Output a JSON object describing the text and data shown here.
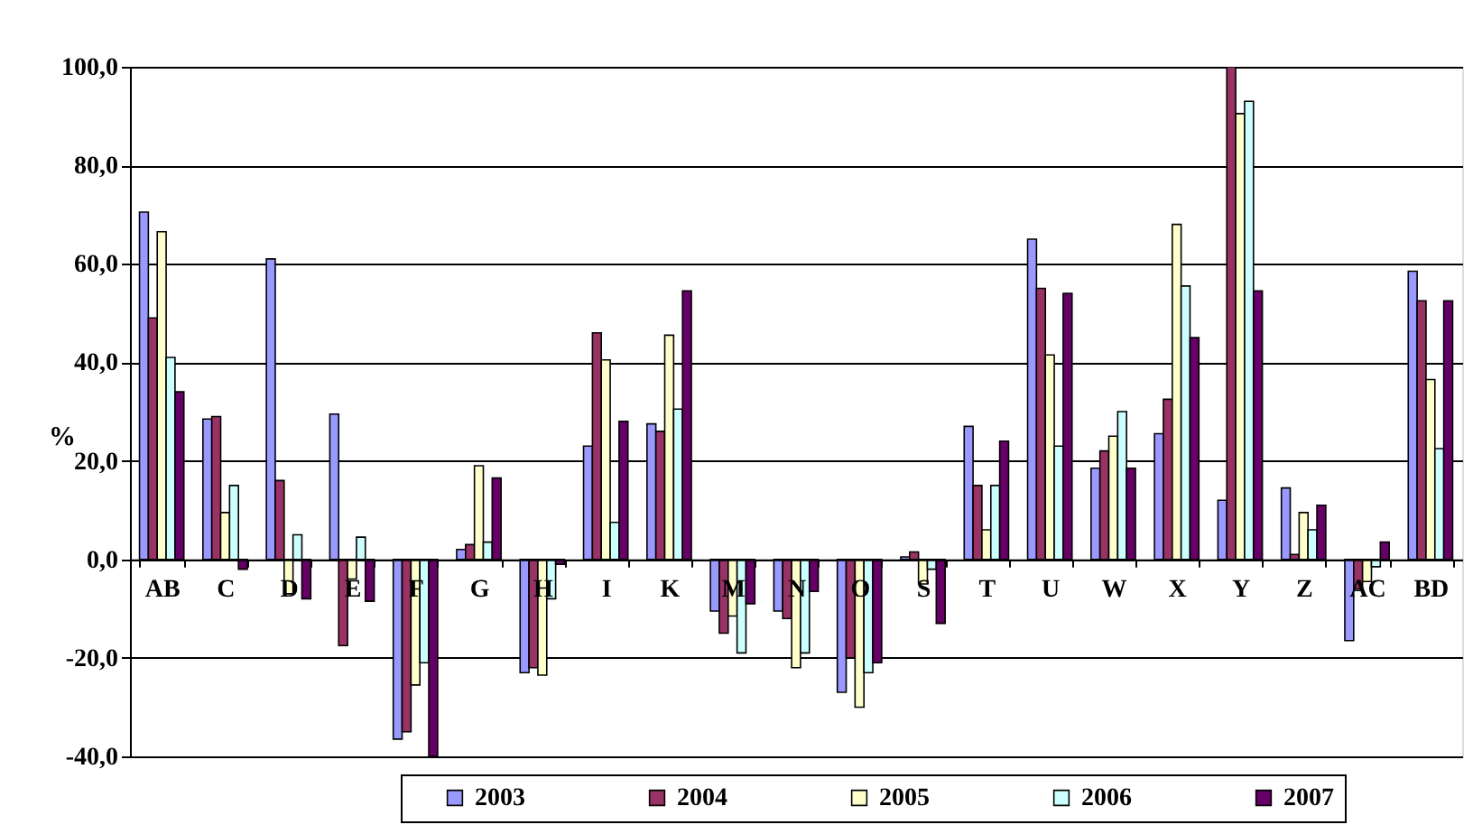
{
  "chart_data": {
    "type": "bar",
    "categories": [
      "AB",
      "C",
      "D",
      "E",
      "F",
      "G",
      "H",
      "I",
      "K",
      "M",
      "N",
      "O",
      "S",
      "T",
      "U",
      "W",
      "X",
      "Y",
      "Z",
      "AC",
      "BD"
    ],
    "series": [
      {
        "name": "2003",
        "color": "#9999ff",
        "values": [
          70.5,
          28.5,
          61,
          29.5,
          -36.5,
          2,
          -23,
          23,
          27.5,
          -10.5,
          -10.5,
          -27,
          0.5,
          27,
          65,
          18.5,
          25.5,
          12,
          14.5,
          -16.5,
          58.5
        ]
      },
      {
        "name": "2004",
        "color": "#993366",
        "values": [
          49,
          29,
          16,
          -17.5,
          -35,
          3,
          -22,
          46,
          26,
          -15,
          -12,
          -20,
          1.5,
          15,
          55,
          22,
          32.5,
          100,
          1,
          -6,
          52.5
        ]
      },
      {
        "name": "2005",
        "color": "#ffffcc",
        "values": [
          66.5,
          9.5,
          -7,
          -4,
          -25.5,
          19,
          -23.5,
          40.5,
          45.5,
          -11.5,
          -22,
          -30,
          -5,
          6,
          41.5,
          25,
          68,
          90.5,
          9.5,
          -4.5,
          36.5
        ]
      },
      {
        "name": "2006",
        "color": "#ccffff",
        "values": [
          41,
          15,
          5,
          4.5,
          -21,
          3.5,
          -8,
          7.5,
          30.5,
          -19,
          -19,
          -23,
          -2,
          15,
          23,
          30,
          55.5,
          93,
          6,
          -1.5,
          22.5
        ]
      },
      {
        "name": "2007",
        "color": "#660066",
        "values": [
          34,
          -2,
          -8,
          -8.5,
          -40,
          16.5,
          -1,
          28,
          54.5,
          -9,
          -6.5,
          -21,
          -13,
          24,
          54,
          18.5,
          45,
          54.5,
          11,
          3.5,
          52.5
        ]
      }
    ],
    "ylabel": "%",
    "ylim": [
      -40,
      100
    ],
    "yticks": [
      {
        "value": -40,
        "label": "-40,0"
      },
      {
        "value": -20,
        "label": "-20,0"
      },
      {
        "value": 0,
        "label": "0,0"
      },
      {
        "value": 20,
        "label": "20,0"
      },
      {
        "value": 40,
        "label": "40,0"
      },
      {
        "value": 60,
        "label": "60,0"
      },
      {
        "value": 80,
        "label": "80,0"
      },
      {
        "value": 100,
        "label": "100,0"
      }
    ],
    "grid": "y",
    "legend": "bottom"
  }
}
